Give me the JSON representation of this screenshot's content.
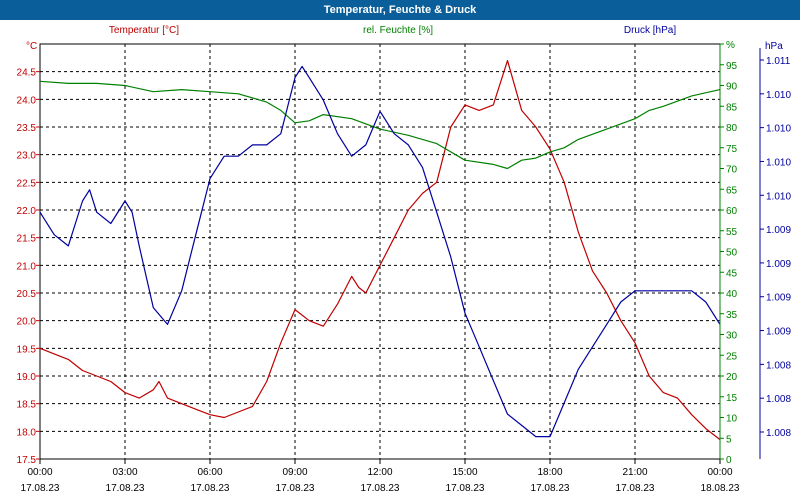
{
  "window": {
    "title": "Temperatur, Feuchte & Druck"
  },
  "colors": {
    "temperature": "#c00000",
    "humidity": "#008000",
    "pressure": "#0000a0",
    "axis": "#000000",
    "grid": "#000000",
    "titlebar": "#0a5f9a"
  },
  "chart_data": {
    "type": "line",
    "title": "Temperatur, Feuchte & Druck",
    "grid": true,
    "axes": {
      "left": {
        "unit": "°C",
        "ylim": [
          17.5,
          25.0
        ],
        "ticks": [
          "17.5",
          "18.0",
          "18.5",
          "19.0",
          "19.5",
          "20.0",
          "20.5",
          "21.0",
          "21.5",
          "22.0",
          "22.5",
          "23.0",
          "23.5",
          "24.0",
          "24.5"
        ]
      },
      "right1": {
        "unit": "%",
        "ylim": [
          0,
          100
        ],
        "ticks": [
          "0",
          "5",
          "10",
          "15",
          "20",
          "25",
          "30",
          "35",
          "40",
          "45",
          "50",
          "55",
          "60",
          "65",
          "70",
          "75",
          "80",
          "85",
          "90",
          "95",
          "%"
        ]
      },
      "right2": {
        "unit": "hPa",
        "ylim": [
          1.0075,
          1.0112
        ],
        "ticks": [
          "1.008",
          "1.008",
          "1.008",
          "1.009",
          "1.009",
          "1.009",
          "1.009",
          "1.010",
          "1.010",
          "1.010",
          "1.010",
          "1.011"
        ]
      }
    },
    "x_hours": [
      0,
      24
    ],
    "x_ticks": [
      {
        "time": "00:00",
        "date": "17.08.23"
      },
      {
        "time": "03:00",
        "date": "17.08.23"
      },
      {
        "time": "06:00",
        "date": "17.08.23"
      },
      {
        "time": "09:00",
        "date": "17.08.23"
      },
      {
        "time": "12:00",
        "date": "17.08.23"
      },
      {
        "time": "15:00",
        "date": "17.08.23"
      },
      {
        "time": "18:00",
        "date": "17.08.23"
      },
      {
        "time": "21:00",
        "date": "17.08.23"
      },
      {
        "time": "00:00",
        "date": "18.08.23"
      }
    ],
    "series": [
      {
        "name": "Temperatur [°C]",
        "axis": "left",
        "x": [
          0,
          0.5,
          1,
          1.5,
          2,
          2.5,
          3,
          3.5,
          4,
          4.2,
          4.5,
          5,
          5.5,
          6,
          6.5,
          7,
          7.5,
          8,
          8.5,
          9,
          9.25,
          9.5,
          10,
          10.5,
          11,
          11.25,
          11.5,
          12,
          12.5,
          13,
          13.5,
          14,
          14.5,
          15,
          15.5,
          16,
          16.5,
          17,
          17.5,
          18,
          18.5,
          19,
          19.5,
          20,
          20.5,
          21,
          21.5,
          22,
          22.5,
          23,
          23.5,
          24
        ],
        "values": [
          19.5,
          19.4,
          19.3,
          19.1,
          19.0,
          18.9,
          18.7,
          18.6,
          18.75,
          18.9,
          18.6,
          18.5,
          18.4,
          18.3,
          18.25,
          18.35,
          18.45,
          18.9,
          19.6,
          20.2,
          20.1,
          20.0,
          19.9,
          20.3,
          20.8,
          20.6,
          20.5,
          21.0,
          21.5,
          22.0,
          22.3,
          22.5,
          23.5,
          23.9,
          23.8,
          23.9,
          24.7,
          23.8,
          23.5,
          23.1,
          22.5,
          21.6,
          20.9,
          20.5,
          20.0,
          19.6,
          19.0,
          18.7,
          18.6,
          18.3,
          18.05,
          17.85
        ]
      },
      {
        "name": "rel. Feuchte [%]",
        "axis": "right1",
        "x": [
          0,
          1,
          2,
          3,
          4,
          5,
          6,
          7,
          8,
          8.5,
          9,
          9.5,
          10,
          11,
          12,
          13,
          14,
          15,
          16,
          16.5,
          17,
          17.5,
          18,
          18.5,
          19,
          20,
          21,
          21.5,
          22,
          23,
          24
        ],
        "values": [
          91,
          90.5,
          90.5,
          90,
          88.5,
          89,
          88.5,
          88,
          86,
          84,
          81,
          81.5,
          83,
          82,
          79.5,
          78,
          76,
          72,
          71,
          70,
          72,
          72.5,
          74,
          75,
          77,
          79.5,
          82,
          84,
          85,
          87.5,
          89
        ]
      },
      {
        "name": "Druck [hPa]",
        "axis": "right2",
        "x": [
          0,
          0.5,
          1,
          1.5,
          1.75,
          2,
          2.5,
          3,
          3.25,
          3.5,
          4,
          4.5,
          5,
          5.5,
          6,
          6.5,
          7,
          7.5,
          8,
          8.5,
          9,
          9.25,
          9.5,
          10,
          10.5,
          11,
          11.5,
          12,
          12.5,
          13,
          13.5,
          14,
          14.5,
          15,
          15.5,
          16,
          16.5,
          17,
          17.5,
          18,
          18.5,
          19,
          19.5,
          20,
          20.5,
          21,
          21.5,
          22,
          22.5,
          23,
          23.5,
          24
        ],
        "values": [
          1.0097,
          1.0095,
          1.0094,
          1.0098,
          1.0099,
          1.0097,
          1.0096,
          1.0098,
          1.0097,
          1.0094,
          1.00885,
          1.0087,
          1.009,
          1.0095,
          1.01,
          1.0102,
          1.0102,
          1.0103,
          1.0103,
          1.0104,
          1.0109,
          1.011,
          1.0109,
          1.0107,
          1.0104,
          1.0102,
          1.0103,
          1.0106,
          1.0104,
          1.0103,
          1.0101,
          1.0097,
          1.0093,
          1.0088,
          1.0085,
          1.0082,
          1.0079,
          1.0078,
          1.0077,
          1.0077,
          1.008,
          1.0083,
          1.0085,
          1.0087,
          1.0089,
          1.009,
          1.009,
          1.009,
          1.009,
          1.009,
          1.0089,
          1.0087
        ]
      }
    ]
  }
}
